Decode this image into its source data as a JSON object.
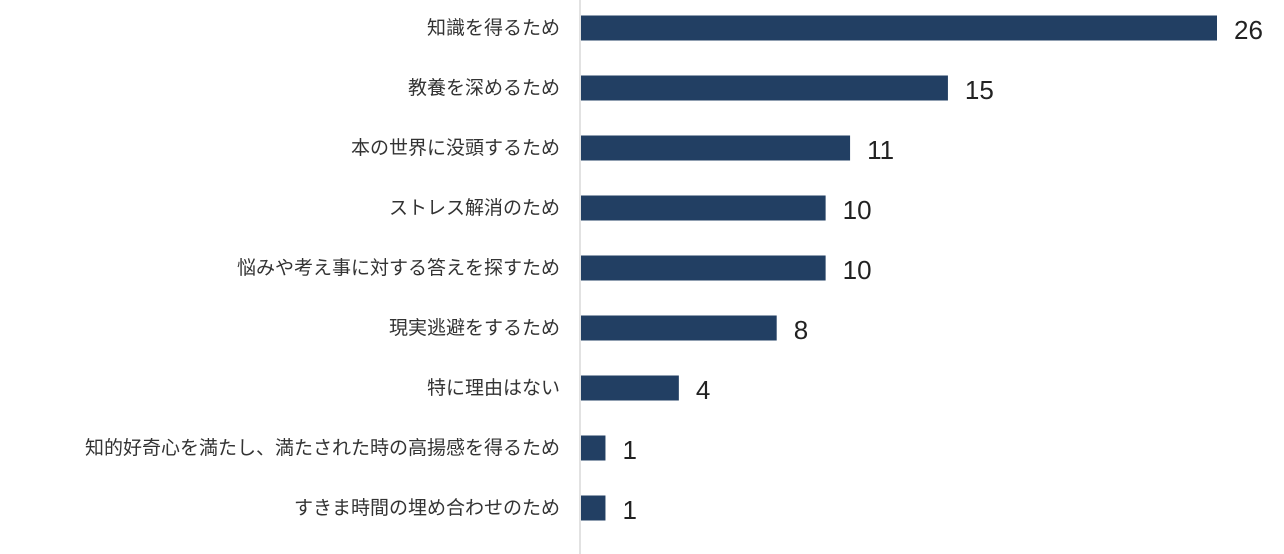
{
  "chart_data": {
    "type": "bar",
    "orientation": "horizontal",
    "categories": [
      "知識を得るため",
      "教養を深めるため",
      "本の世界に没頭するため",
      "ストレス解消のため",
      "悩みや考え事に対する答えを探すため",
      "現実逃避をするため",
      "特に理由はない",
      "知的好奇心を満たし、満たされた時の高揚感を得るため",
      "すきま時間の埋め合わせのため"
    ],
    "values": [
      26,
      15,
      11,
      10,
      10,
      8,
      4,
      1,
      1
    ],
    "data_labels": [
      "26",
      "15",
      "11",
      "10",
      "10",
      "8",
      "4",
      "1",
      "1"
    ],
    "title": "",
    "xlabel": "",
    "ylabel": "",
    "xlim": [
      0,
      26
    ],
    "grid": false,
    "legend": "none",
    "colors": {
      "bar": "#223f63",
      "axis": "#d9d9d9"
    }
  }
}
